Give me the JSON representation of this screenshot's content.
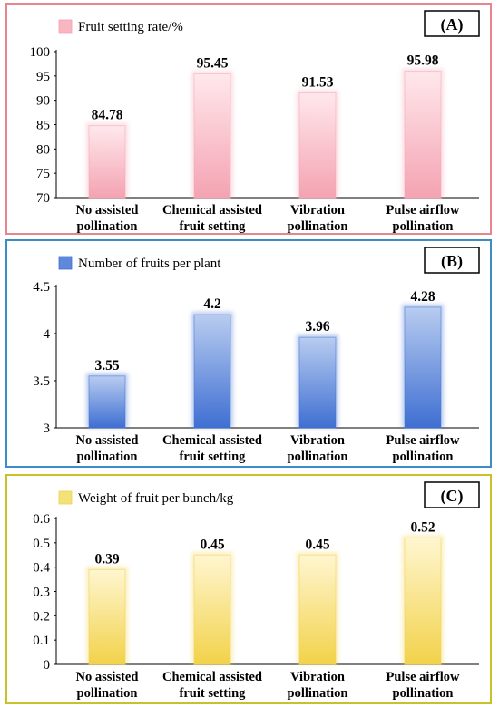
{
  "chart_data": [
    {
      "panel_label": "(A)",
      "type": "bar",
      "categories": [
        [
          "No assisted",
          "pollination"
        ],
        [
          "Chemical assisted",
          "fruit setting"
        ],
        [
          "Vibration",
          "pollination"
        ],
        [
          "Pulse airflow",
          "pollination"
        ]
      ],
      "series": [
        {
          "name": "Fruit setting rate/%",
          "values": [
            84.78,
            95.45,
            91.53,
            95.98
          ]
        }
      ],
      "value_labels": [
        "84.78",
        "95.45",
        "91.53",
        "95.98"
      ],
      "ylim": [
        70,
        100
      ],
      "yticks": [
        "70",
        "75",
        "80",
        "85",
        "90",
        "95",
        "100"
      ],
      "legend_position": "top-left",
      "colors": {
        "border": "#e8848c",
        "bar_top": "#ffe8ec",
        "bar_bottom": "#f4a3b2",
        "legend_swatch": "#f7b6c2"
      }
    },
    {
      "panel_label": "(B)",
      "type": "bar",
      "categories": [
        [
          "No assisted",
          "pollination"
        ],
        [
          "Chemical assisted",
          "fruit setting"
        ],
        [
          "Vibration",
          "pollination"
        ],
        [
          "Pulse airflow",
          "pollination"
        ]
      ],
      "series": [
        {
          "name": "Number of fruits per plant",
          "values": [
            3.55,
            4.2,
            3.96,
            4.28
          ]
        }
      ],
      "value_labels": [
        "3.55",
        "4.2",
        "3.96",
        "4.28"
      ],
      "ylim": [
        3,
        4.5
      ],
      "yticks": [
        "3",
        "3.5",
        "4",
        "4.5"
      ],
      "legend_position": "top-left",
      "colors": {
        "border": "#3c8cc8",
        "bar_top": "#b8ccf0",
        "bar_bottom": "#3f6fd2",
        "legend_swatch": "#5f88dc"
      }
    },
    {
      "panel_label": "(C)",
      "type": "bar",
      "categories": [
        [
          "No assisted",
          "pollination"
        ],
        [
          "Chemical assisted",
          "fruit setting"
        ],
        [
          "Vibration",
          "pollination"
        ],
        [
          "Pulse airflow",
          "pollination"
        ]
      ],
      "series": [
        {
          "name": "Weight of fruit per bunch/kg",
          "values": [
            0.39,
            0.45,
            0.45,
            0.52
          ]
        }
      ],
      "value_labels": [
        "0.39",
        "0.45",
        "0.45",
        "0.52"
      ],
      "ylim": [
        0,
        0.6
      ],
      "yticks": [
        "0",
        "0.1",
        "0.2",
        "0.3",
        "0.4",
        "0.5",
        "0.6"
      ],
      "legend_position": "top-left",
      "colors": {
        "border": "#c8c22a",
        "bar_top": "#fff6d0",
        "bar_bottom": "#f2d24a",
        "legend_swatch": "#f3e27a"
      }
    }
  ]
}
